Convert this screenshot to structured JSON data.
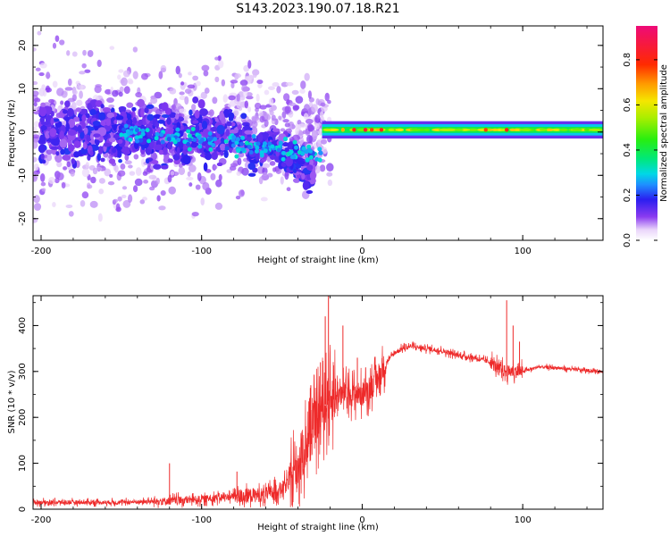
{
  "title": "S143.2023.190.07.18.R21",
  "chart_data": [
    {
      "type": "heatmap",
      "xlabel": "Height of straight line (km)",
      "ylabel": "Frequency (Hz)",
      "xlim": [
        -205,
        150
      ],
      "ylim": [
        -25,
        24.5
      ],
      "xticks": [
        -200,
        -100,
        0,
        100
      ],
      "yticks": [
        -20,
        -10,
        0,
        10,
        20
      ],
      "colorbar": {
        "label": "Normalized spectral amplitude",
        "range": [
          0.0,
          0.95
        ],
        "ticks": [
          0.0,
          0.2,
          0.4,
          0.6,
          0.8
        ]
      },
      "grid": false,
      "features": {
        "dispersed_region_x": [
          -205,
          -30
        ],
        "stable_band_x": [
          -25,
          150
        ],
        "stable_band_center_hz": 0.5
      }
    },
    {
      "type": "line",
      "xlabel": "Height of straight line (km)",
      "ylabel": "SNR (10 * v/v)",
      "xlim": [
        -205,
        150
      ],
      "ylim": [
        0,
        465
      ],
      "xticks": [
        -200,
        -100,
        0,
        100
      ],
      "yticks": [
        0,
        100,
        200,
        300,
        400
      ],
      "grid": false,
      "line_color": "#ee2a2a",
      "x": [
        -205,
        -180,
        -150,
        -120,
        -100,
        -80,
        -70,
        -60,
        -50,
        -45,
        -40,
        -35,
        -30,
        -25,
        -20,
        -15,
        -10,
        -5,
        0,
        5,
        10,
        15,
        20,
        25,
        30,
        40,
        50,
        60,
        70,
        80,
        85,
        90,
        95,
        100,
        110,
        120,
        130,
        140,
        150
      ],
      "y": [
        15,
        15,
        15,
        18,
        22,
        28,
        30,
        32,
        45,
        60,
        95,
        140,
        180,
        220,
        240,
        250,
        255,
        250,
        250,
        265,
        285,
        320,
        340,
        350,
        355,
        350,
        345,
        335,
        330,
        320,
        305,
        300,
        300,
        300,
        310,
        308,
        305,
        302,
        300
      ],
      "spikes": [
        {
          "x": -120,
          "y": 100
        },
        {
          "x": -78,
          "y": 82
        },
        {
          "x": -32,
          "y": 270
        },
        {
          "x": -26,
          "y": 320
        },
        {
          "x": -23,
          "y": 420
        },
        {
          "x": -21,
          "y": 465
        },
        {
          "x": -12,
          "y": 400
        },
        {
          "x": -3,
          "y": 330
        },
        {
          "x": 90,
          "y": 455
        },
        {
          "x": 94,
          "y": 400
        },
        {
          "x": 98,
          "y": 365
        }
      ]
    }
  ]
}
